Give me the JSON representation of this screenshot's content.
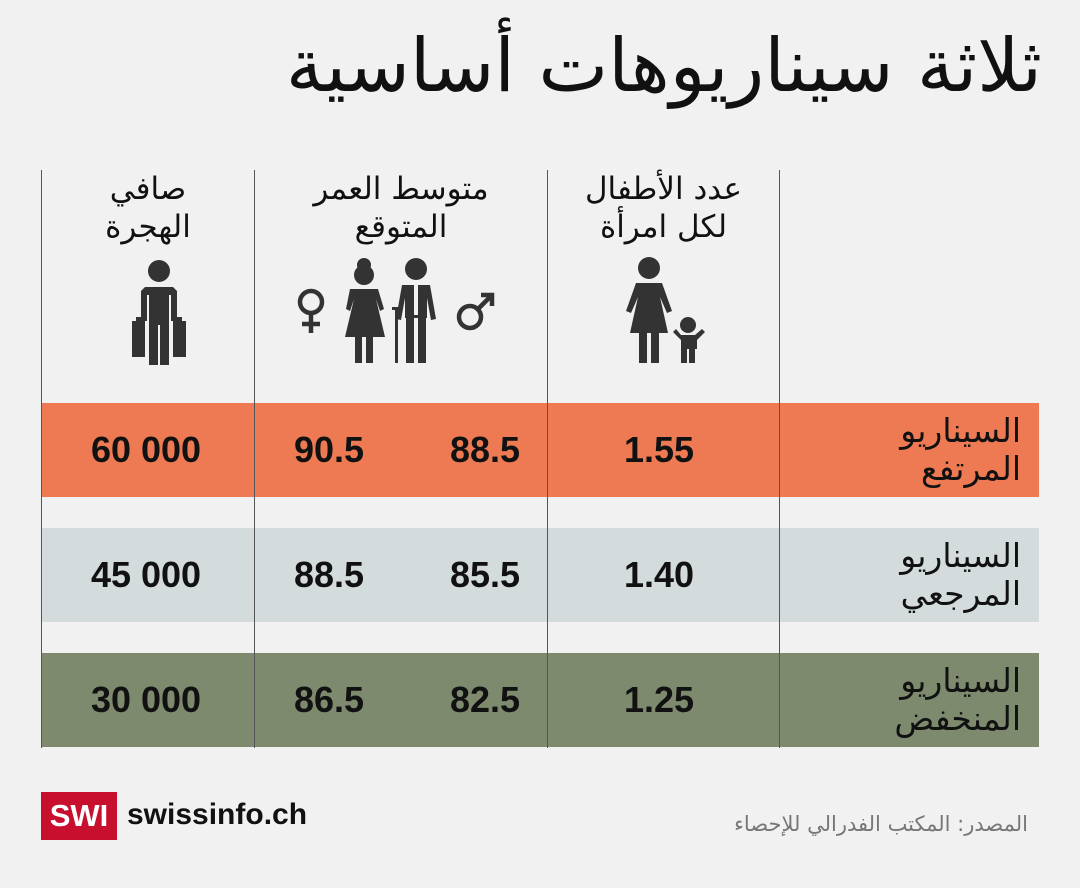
{
  "title": "ثلاثة سيناريوهات أساسية",
  "headers": {
    "children": [
      "عدد الأطفال",
      "لكل امرأة"
    ],
    "life": [
      "متوسط العمر",
      "المتوقع"
    ],
    "migration": [
      "صافي",
      "الهجرة"
    ]
  },
  "icons": {
    "children": "mother-child-icon",
    "life": "elderly-couple-icon",
    "female": "female-symbol-icon",
    "male": "male-symbol-icon",
    "migration": "traveller-suitcases-icon"
  },
  "colors": {
    "high": "#ed7a52",
    "reference": "#d4dbdd",
    "low": "#7d8a6d",
    "icon": "#333333",
    "brand_red": "#c8102e"
  },
  "rows": [
    {
      "key": "high",
      "label": [
        "السيناريو",
        "المرتفع"
      ],
      "children": "1.55",
      "male": "88.5",
      "female": "90.5",
      "migration": "60 000"
    },
    {
      "key": "reference",
      "label": [
        "السيناريو",
        "المرجعي"
      ],
      "children": "1.40",
      "male": "85.5",
      "female": "88.5",
      "migration": "45 000"
    },
    {
      "key": "low",
      "label": [
        "السيناريو",
        "المنخفض"
      ],
      "children": "1.25",
      "male": "82.5",
      "female": "86.5",
      "migration": "30 000"
    }
  ],
  "footer": {
    "logo": "SWI",
    "brand": "swissinfo.ch",
    "source": "المصدر: المكتب الفدرالي للإحصاء"
  }
}
